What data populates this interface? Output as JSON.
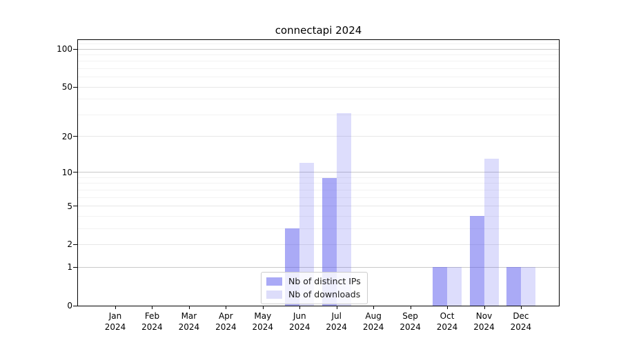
{
  "title": "connectapi 2024",
  "chart_data": {
    "type": "bar",
    "title": "connectapi 2024",
    "categories": [
      "Jan 2024",
      "Feb 2024",
      "Mar 2024",
      "Apr 2024",
      "May 2024",
      "Jun 2024",
      "Jul 2024",
      "Aug 2024",
      "Sep 2024",
      "Oct 2024",
      "Nov 2024",
      "Dec 2024"
    ],
    "x_tick_month": [
      "Jan",
      "Feb",
      "Mar",
      "Apr",
      "May",
      "Jun",
      "Jul",
      "Aug",
      "Sep",
      "Oct",
      "Nov",
      "Dec"
    ],
    "x_tick_year": "2024",
    "series": [
      {
        "name": "Nb of distinct IPs",
        "base_color": "#5555ee",
        "alpha": 0.5,
        "rendered_color": "#aaaaf6",
        "values": [
          0,
          0,
          0,
          0,
          0,
          3,
          9,
          0,
          0,
          1,
          4,
          1
        ]
      },
      {
        "name": "Nb of downloads",
        "base_color": "#5555ee",
        "alpha": 0.2,
        "rendered_color": "#ddddfa",
        "values": [
          0,
          0,
          0,
          0,
          0,
          12,
          31,
          0,
          0,
          1,
          13,
          1
        ]
      }
    ],
    "yscale": "log1p",
    "yticks": [
      0,
      1,
      2,
      5,
      10,
      20,
      50,
      100
    ],
    "ylim": [
      0,
      118
    ],
    "minor_gridline_values": [
      3,
      4,
      6,
      7,
      8,
      9,
      30,
      40,
      60,
      70,
      80,
      90,
      110
    ],
    "grid": true,
    "legend_position": "lower center"
  },
  "colors": {
    "decade_gridline": "#c9c9c9",
    "labeled_gridline": "#e7e7e7",
    "minor_gridline": "#f2f2f2",
    "spine": "#000000",
    "legend_border": "#cccccc"
  }
}
